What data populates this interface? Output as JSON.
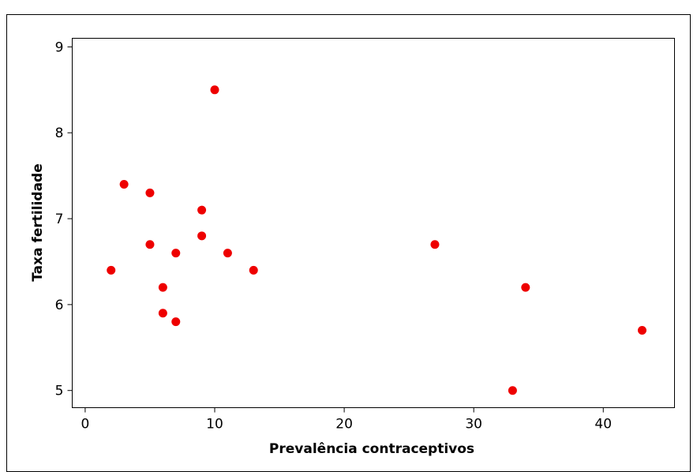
{
  "chart_data": {
    "type": "scatter",
    "xlabel": "Prevalência contraceptivos",
    "ylabel": "Taxa fertilidade",
    "xlim": [
      -1,
      45.5
    ],
    "ylim": [
      4.8,
      9.1
    ],
    "x_ticks": [
      0,
      10,
      20,
      30,
      40
    ],
    "y_ticks": [
      5,
      6,
      7,
      8,
      9
    ],
    "grid": false,
    "point_color": "#ee0000",
    "points": [
      {
        "x": 2,
        "y": 6.4
      },
      {
        "x": 3,
        "y": 7.4
      },
      {
        "x": 5,
        "y": 7.3
      },
      {
        "x": 5,
        "y": 6.7
      },
      {
        "x": 6,
        "y": 6.2
      },
      {
        "x": 6,
        "y": 5.9
      },
      {
        "x": 7,
        "y": 6.6
      },
      {
        "x": 7,
        "y": 5.8
      },
      {
        "x": 9,
        "y": 7.1
      },
      {
        "x": 9,
        "y": 6.8
      },
      {
        "x": 10,
        "y": 8.5
      },
      {
        "x": 11,
        "y": 6.6
      },
      {
        "x": 13,
        "y": 6.4
      },
      {
        "x": 27,
        "y": 6.7
      },
      {
        "x": 33,
        "y": 5.0
      },
      {
        "x": 34,
        "y": 6.2
      },
      {
        "x": 43,
        "y": 5.7
      }
    ]
  }
}
